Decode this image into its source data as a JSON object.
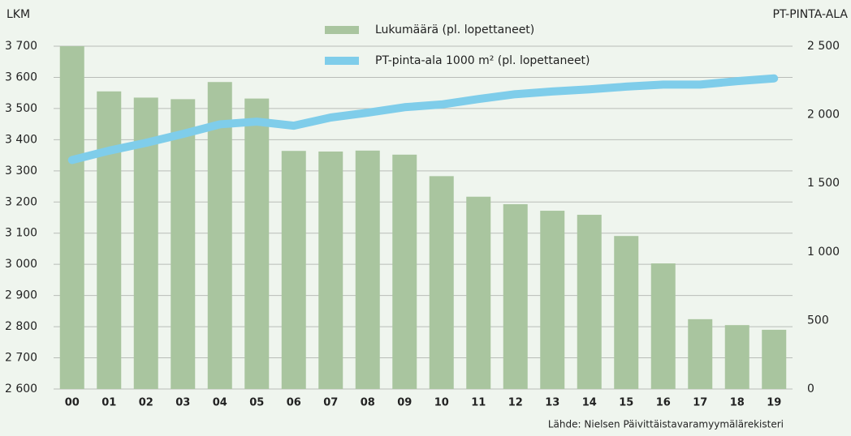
{
  "chart_data": {
    "type": "bar-line",
    "y_label": "LKM",
    "y2_label": "PT-PINTA-ALA",
    "source": "Lähde: Nielsen Päivittäistavaramyymälärekisteri",
    "categories": [
      "00",
      "01",
      "02",
      "03",
      "04",
      "05",
      "06",
      "07",
      "08",
      "09",
      "10",
      "11",
      "12",
      "13",
      "14",
      "15",
      "16",
      "17",
      "18",
      "19"
    ],
    "series": [
      {
        "name": "Lukumäärä (pl. lopettaneet)",
        "type": "bar",
        "color": "#a9c59f",
        "axis": "y",
        "values": [
          3700,
          3555,
          3535,
          3530,
          3585,
          3532,
          3364,
          3362,
          3365,
          3352,
          3283,
          3217,
          3193,
          3172,
          3159,
          3091,
          3003,
          2824,
          2805,
          2790
        ]
      },
      {
        "name": "PT-pinta-ala 1000 m² (pl. lopettaneet)",
        "type": "line",
        "color": "#7fcdea",
        "axis": "y2",
        "values": [
          1670,
          1738,
          1795,
          1860,
          1930,
          1950,
          1920,
          1980,
          2015,
          2055,
          2075,
          2115,
          2150,
          2170,
          2185,
          2205,
          2220,
          2220,
          2245,
          2265
        ]
      }
    ],
    "ylim": [
      2600,
      3700
    ],
    "yticks": [
      {
        "value": 2600,
        "label": "2 600"
      },
      {
        "value": 2700,
        "label": "2 700"
      },
      {
        "value": 2800,
        "label": "2 800"
      },
      {
        "value": 2900,
        "label": "2 900"
      },
      {
        "value": 3000,
        "label": "3 000"
      },
      {
        "value": 3100,
        "label": "3 100"
      },
      {
        "value": 3200,
        "label": "3 200"
      },
      {
        "value": 3300,
        "label": "3 300"
      },
      {
        "value": 3400,
        "label": "3 400"
      },
      {
        "value": 3500,
        "label": "3 500"
      },
      {
        "value": 3600,
        "label": "3 600"
      },
      {
        "value": 3700,
        "label": "3 700"
      }
    ],
    "y2lim": [
      0,
      2500
    ],
    "y2ticks": [
      0,
      500,
      {
        "value": 1000,
        "label": "1 000"
      },
      {
        "value": 1500,
        "label": "1 500"
      },
      {
        "value": 2000,
        "label": "2 000"
      },
      {
        "value": 2500,
        "label": "2 500"
      }
    ],
    "grid": true
  }
}
